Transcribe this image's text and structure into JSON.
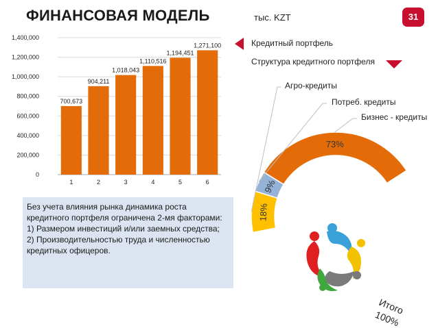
{
  "header": {
    "title": "ФИНАНСОВАЯ МОДЕЛЬ",
    "unit": "тыс. KZT",
    "page_number": "31"
  },
  "legend": {
    "portfolio_label": "Кредитный портфель",
    "structure_label": "Структура кредитного портфеля",
    "accent_color": "#c8102e"
  },
  "donut": {
    "agro_label": "Агро-кредиты",
    "consumer_label": "Потреб. кредиты",
    "business_label": "Бизнес - кредиты",
    "total_line1": "Итого",
    "total_line2": "100%",
    "segments": [
      {
        "name": "Агро-кредиты",
        "value": 18,
        "label": "18%",
        "color": "#ffc000"
      },
      {
        "name": "Потреб. кредиты",
        "value": 9,
        "label": "9%",
        "color": "#95b3d7"
      },
      {
        "name": "Бизнес - кредиты",
        "value": 73,
        "label": "73%",
        "color": "#e36c09"
      }
    ]
  },
  "note": {
    "lines": [
      "Без учета влияния рынка динамика роста кредитного портфеля ограничена 2-мя факторами:",
      "1) Размером инвестиций и/или заемных средства;",
      "2) Производительностью труда и численностью кредитных офицеров."
    ]
  },
  "chart_data": {
    "type": "bar",
    "categories": [
      "1",
      "2",
      "3",
      "4",
      "5",
      "6"
    ],
    "values": [
      700673,
      904211,
      1018043,
      1110516,
      1194451,
      1271100
    ],
    "value_labels": [
      "700,673",
      "904,211",
      "1,018,043",
      "1,110,516",
      "1,194,451",
      "1,271,100"
    ],
    "ylim": [
      0,
      1400000
    ],
    "yticks": [
      0,
      200000,
      400000,
      600000,
      800000,
      1000000,
      1200000,
      1400000
    ],
    "ytick_labels": [
      "0",
      "200,000",
      "400,000",
      "600,000",
      "800,000",
      "1,000,000",
      "1,200,000",
      "1,400,000"
    ],
    "bar_color": "#e36c09",
    "grid": true,
    "title": "",
    "xlabel": "",
    "ylabel": ""
  }
}
